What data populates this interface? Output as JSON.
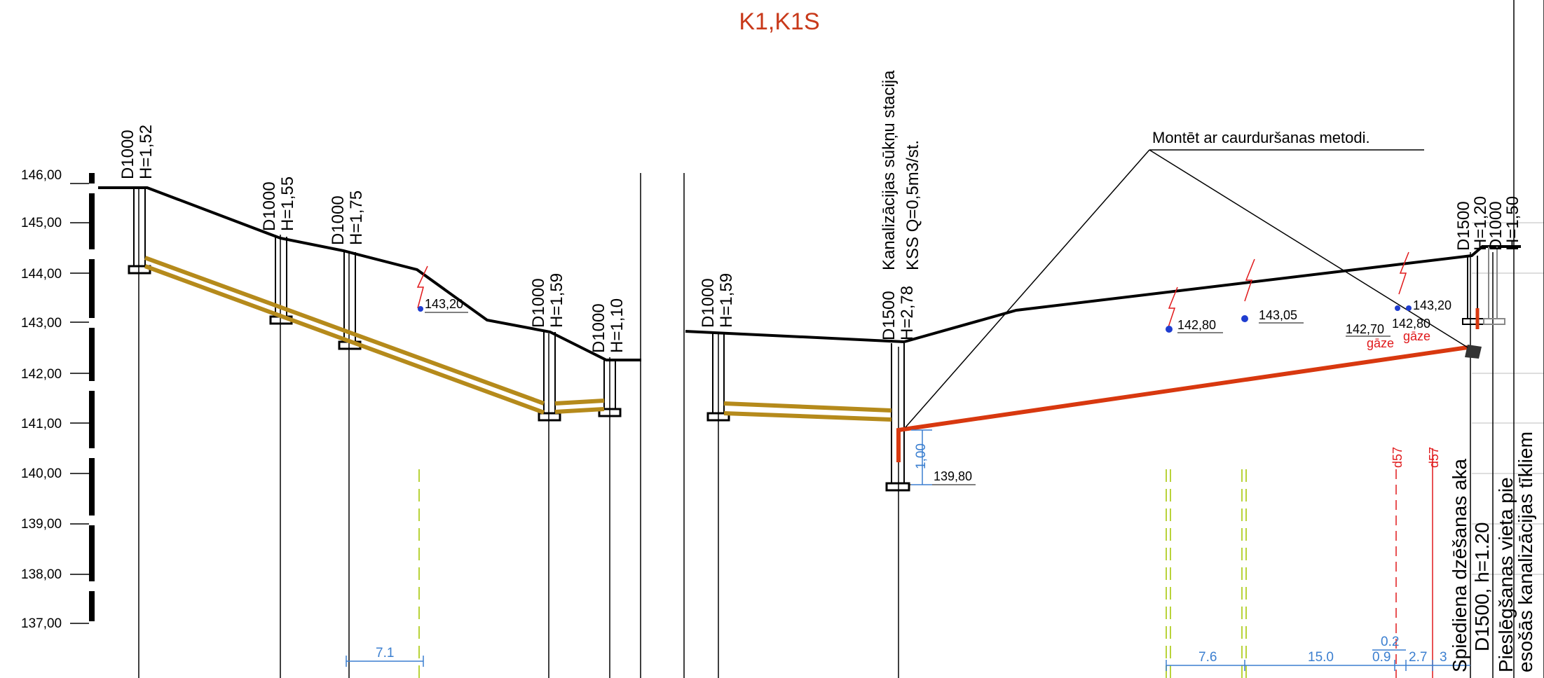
{
  "title": "K1,K1S",
  "elevation_axis": {
    "labels": [
      "146,00",
      "145,00",
      "144,00",
      "143,00",
      "142,00",
      "141,00",
      "140,00",
      "139,00",
      "138,00",
      "137,00"
    ]
  },
  "manholes": [
    {
      "d": "D1000",
      "h": "H=1,52"
    },
    {
      "d": "D1000",
      "h": "H=1,55"
    },
    {
      "d": "D1000",
      "h": "H=1,75"
    },
    {
      "d": "D1000",
      "h": "H=1,59"
    },
    {
      "d": "D1000",
      "h": "H=1,10"
    },
    {
      "d": "D1000",
      "h": "H=1,59"
    },
    {
      "d": "D1500",
      "h": "H=2,78"
    },
    {
      "d": "D1500",
      "h": "H=1,20"
    },
    {
      "d": "D1000",
      "h": "H=1,50"
    }
  ],
  "pump_station": {
    "line1": "Kanalizācijas sūkņu stacija",
    "line2": "KSS Q=0,5m3/st."
  },
  "note": "Montēt ar caurduršanas metodi.",
  "crossings": {
    "c1": "143,20",
    "c2": "142,80",
    "c3": "143,05",
    "c4": "143,20",
    "c5": "142,70",
    "c6": "142,80",
    "gaze1": "gāze",
    "gaze2": "gāze",
    "bottom": "139,80"
  },
  "dimensions": {
    "d1": "1,00",
    "d2": "7.1",
    "d3": "7.6",
    "d4": "15.0",
    "d5": "0.2",
    "d6": "0.9",
    "d7": "2.7",
    "d8": "3"
  },
  "gas_pipes": {
    "a": "d57",
    "b": "d57"
  },
  "vertical_labels": {
    "v1": "Spiediena dzēšanas aka",
    "v2": "D1500, h=1.20",
    "v3": "Pieslēgšanas vieta  pie",
    "v4": "esošās kanalizācijas tīkliem"
  },
  "colors": {
    "title": "#c8391a",
    "gravity_pipe": "#b58a1b",
    "pressure_pipe": "#d8380f",
    "dimension": "#3b7fd0",
    "crossing": "#e0191b",
    "utility_green": "#b9d33a"
  }
}
